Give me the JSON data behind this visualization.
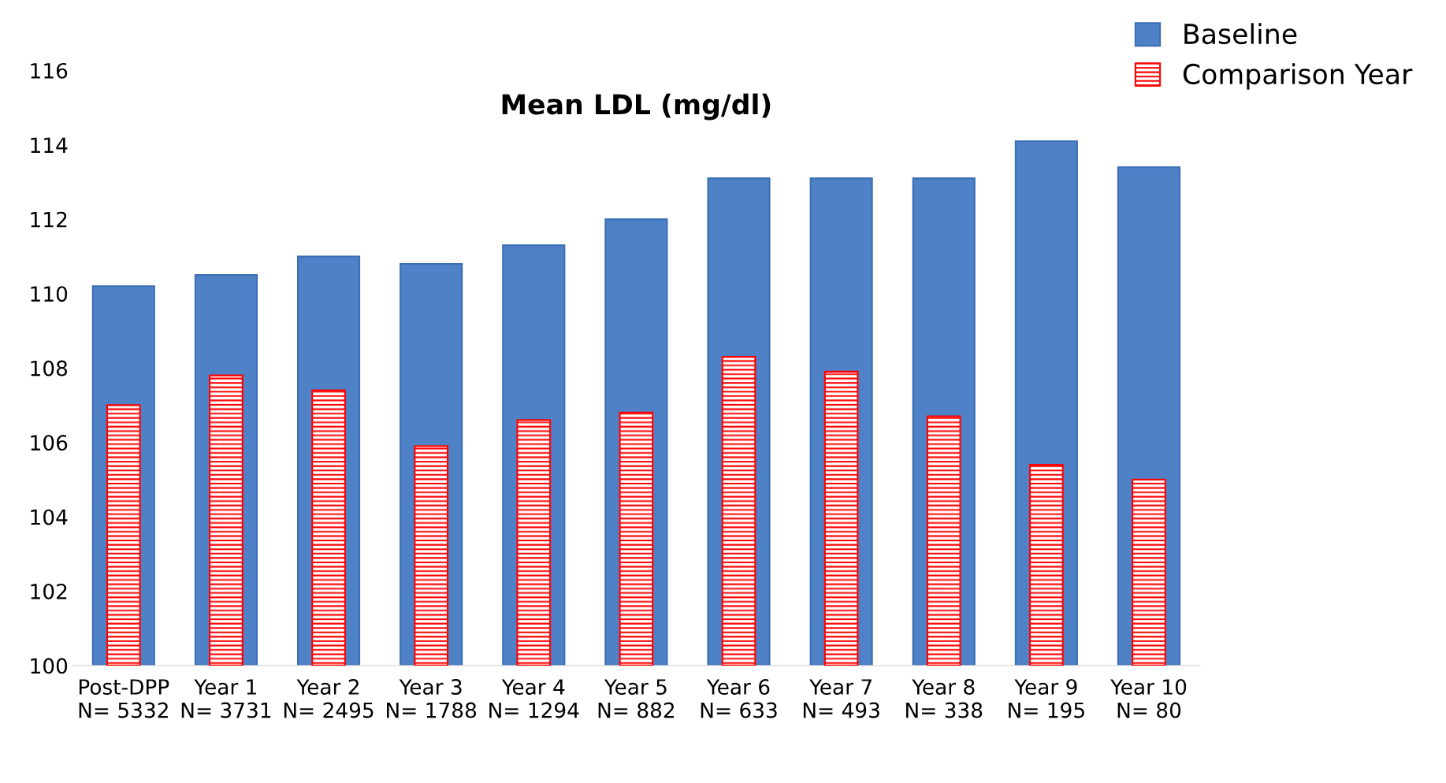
{
  "chart_data": {
    "type": "bar",
    "title": "Mean LDL (mg/dl)",
    "categories": [
      "Post-DPP\nN= 5332",
      "Year 1\nN= 3731",
      "Year 2\nN= 2495",
      "Year 3\nN= 1788",
      "Year 4\nN= 1294",
      "Year 5\nN= 882",
      "Year 6\nN= 633",
      "Year 7\nN= 493",
      "Year 8\nN= 338",
      "Year 9\nN= 195",
      "Year 10\nN= 80"
    ],
    "series": [
      {
        "name": "Baseline",
        "color": "#4f81c7",
        "values": [
          110.2,
          110.5,
          111.0,
          110.8,
          111.3,
          112.0,
          113.1,
          113.1,
          113.1,
          114.1,
          113.4
        ]
      },
      {
        "name": "Comparison Year",
        "color": "#ff0000",
        "values": [
          107.0,
          107.8,
          107.4,
          105.9,
          106.6,
          106.8,
          108.3,
          107.9,
          106.7,
          105.4,
          105.0
        ]
      }
    ],
    "ylim": [
      100,
      116
    ],
    "yticks": [
      100,
      102,
      104,
      106,
      108,
      110,
      112,
      114,
      116
    ],
    "grid": false,
    "legend": "top right"
  }
}
